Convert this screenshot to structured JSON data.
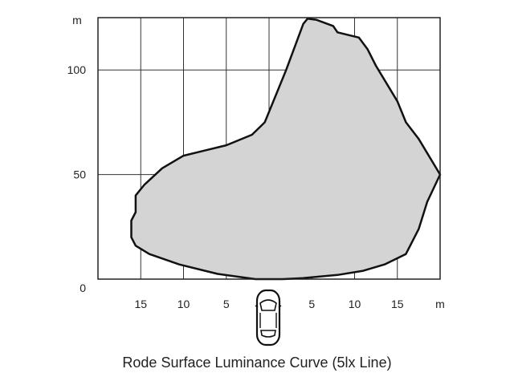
{
  "chart_data": {
    "type": "area",
    "title": "Rode Surface Luminance Curve (5lx Line)",
    "x_unit": "m",
    "y_unit": "m",
    "xlim": [
      -20,
      20
    ],
    "ylim": [
      0,
      125
    ],
    "x_ticks": [
      {
        "value": -15,
        "label": "15"
      },
      {
        "value": -10,
        "label": "10"
      },
      {
        "value": -5,
        "label": "5"
      },
      {
        "value": 5,
        "label": "5"
      },
      {
        "value": 10,
        "label": "10"
      },
      {
        "value": 15,
        "label": "15"
      }
    ],
    "y_ticks": [
      {
        "value": 0,
        "label": "0"
      },
      {
        "value": 50,
        "label": "50"
      },
      {
        "value": 100,
        "label": "100"
      }
    ],
    "grid": true,
    "vehicle_icon": "car-top-view-icon",
    "fill_color": "#d4d4d4",
    "outline_color": "#111111",
    "points": [
      [
        -1.6,
        0
      ],
      [
        -6,
        2.5
      ],
      [
        -10.5,
        7
      ],
      [
        -14,
        12
      ],
      [
        -15.6,
        16
      ],
      [
        -16.1,
        20
      ],
      [
        -16.1,
        28
      ],
      [
        -15.6,
        32
      ],
      [
        -15.6,
        40
      ],
      [
        -14.6,
        45
      ],
      [
        -12.5,
        53
      ],
      [
        -10,
        59
      ],
      [
        -5,
        64
      ],
      [
        -2,
        69
      ],
      [
        -1,
        73
      ],
      [
        -0.5,
        75
      ],
      [
        2,
        100
      ],
      [
        4,
        122
      ],
      [
        4.5,
        124.5
      ],
      [
        5.5,
        124
      ],
      [
        7.5,
        121
      ],
      [
        8,
        118
      ],
      [
        10.5,
        115.5
      ],
      [
        11.5,
        110
      ],
      [
        12.5,
        102
      ],
      [
        15,
        85
      ],
      [
        16,
        75
      ],
      [
        17.5,
        67
      ],
      [
        20,
        50
      ],
      [
        18.5,
        37
      ],
      [
        17.5,
        24
      ],
      [
        16,
        12
      ],
      [
        13.5,
        7
      ],
      [
        11,
        4
      ],
      [
        8,
        2
      ],
      [
        4,
        0.5
      ],
      [
        1.6,
        0
      ]
    ]
  }
}
